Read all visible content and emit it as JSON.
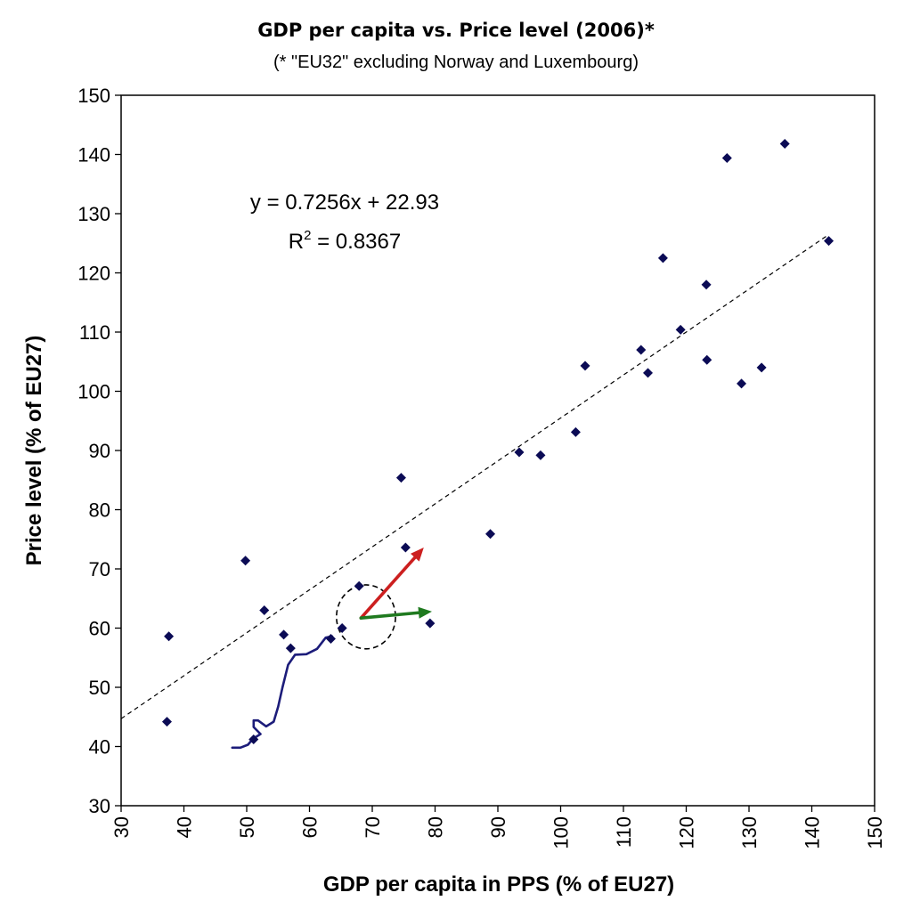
{
  "chart_data": {
    "type": "scatter",
    "title": "GDP per capita vs. Price level (2006)*",
    "subtitle": "(* \"EU32\" excluding Norway and Luxembourg)",
    "xlabel": "GDP per capita in PPS (% of EU27)",
    "ylabel": "Price level (% of EU27)",
    "xlim": [
      30,
      150
    ],
    "ylim": [
      30,
      150
    ],
    "x_ticks": [
      30,
      40,
      50,
      60,
      70,
      80,
      90,
      100,
      110,
      120,
      130,
      140,
      150
    ],
    "y_ticks": [
      30,
      40,
      50,
      60,
      70,
      80,
      90,
      100,
      110,
      120,
      130,
      140,
      150
    ],
    "grid": false,
    "points": [
      {
        "x": 37.3,
        "y": 44.2
      },
      {
        "x": 37.6,
        "y": 58.6
      },
      {
        "x": 49.8,
        "y": 71.4
      },
      {
        "x": 51.1,
        "y": 41.2
      },
      {
        "x": 52.8,
        "y": 63.0
      },
      {
        "x": 55.9,
        "y": 58.9
      },
      {
        "x": 57.0,
        "y": 56.6
      },
      {
        "x": 63.4,
        "y": 58.2
      },
      {
        "x": 65.2,
        "y": 60.0
      },
      {
        "x": 67.9,
        "y": 67.1
      },
      {
        "x": 74.6,
        "y": 85.4
      },
      {
        "x": 75.3,
        "y": 73.6
      },
      {
        "x": 79.2,
        "y": 60.8
      },
      {
        "x": 88.8,
        "y": 75.9
      },
      {
        "x": 93.4,
        "y": 89.7
      },
      {
        "x": 96.8,
        "y": 89.2
      },
      {
        "x": 102.4,
        "y": 93.1
      },
      {
        "x": 103.9,
        "y": 104.3
      },
      {
        "x": 112.8,
        "y": 107.0
      },
      {
        "x": 113.9,
        "y": 103.1
      },
      {
        "x": 116.3,
        "y": 122.5
      },
      {
        "x": 119.1,
        "y": 110.4
      },
      {
        "x": 123.2,
        "y": 118.0
      },
      {
        "x": 123.3,
        "y": 105.3
      },
      {
        "x": 126.5,
        "y": 139.4
      },
      {
        "x": 128.8,
        "y": 101.3
      },
      {
        "x": 132.0,
        "y": 104.0
      },
      {
        "x": 135.7,
        "y": 141.8
      },
      {
        "x": 142.7,
        "y": 125.4
      }
    ],
    "trendline": {
      "slope": 0.7256,
      "intercept": 22.93,
      "x_from": 30,
      "x_to": 142.7,
      "style": "dashed"
    },
    "equation_line1": "y = 0.7256x + 22.93",
    "equation_r2_prefix": "R",
    "equation_r2_sup": "2",
    "equation_r2_suffix": " = 0.8367",
    "annotations": {
      "hand_path": [
        [
          47.7,
          39.8
        ],
        [
          49.0,
          39.8
        ],
        [
          50.2,
          40.3
        ],
        [
          51.0,
          41.3
        ],
        [
          52.2,
          42.1
        ],
        [
          51.1,
          43.3
        ],
        [
          51.1,
          44.4
        ],
        [
          51.8,
          44.4
        ],
        [
          53.1,
          43.4
        ],
        [
          54.3,
          44.2
        ],
        [
          55.0,
          46.7
        ],
        [
          55.7,
          50.0
        ],
        [
          56.6,
          53.8
        ],
        [
          57.7,
          55.5
        ],
        [
          59.5,
          55.6
        ],
        [
          61.2,
          56.5
        ],
        [
          62.6,
          58.4
        ],
        [
          63.6,
          58.6
        ]
      ],
      "hand_path_color": "#1c1c7a",
      "circle": {
        "cx": 69.0,
        "cy": 61.9,
        "rx": 4.7,
        "ry": 5.4
      },
      "arrows": [
        {
          "from": [
            68.2,
            61.7
          ],
          "to": [
            78.2,
            73.6
          ],
          "color": "#cc1f1f"
        },
        {
          "from": [
            68.2,
            61.7
          ],
          "to": [
            79.5,
            62.8
          ],
          "color": "#1f7a1f"
        }
      ]
    },
    "marker_color": "#0b0b55"
  }
}
